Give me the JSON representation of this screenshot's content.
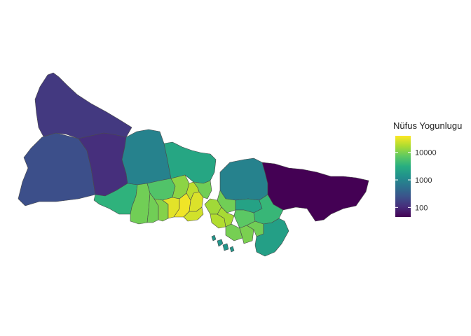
{
  "legend": {
    "title": "Nüfus Yogunlugu",
    "scale": "log10",
    "range": [
      45,
      40000
    ],
    "ticks": [
      {
        "label": "10000",
        "value": 10000
      },
      {
        "label": "1000",
        "value": 1000
      },
      {
        "label": "100",
        "value": 100
      }
    ]
  },
  "palette": [
    "#440154",
    "#472d7b",
    "#3b528b",
    "#2c728e",
    "#21918c",
    "#28ae80",
    "#5ec962",
    "#addc30",
    "#fde725"
  ],
  "regions": [
    {
      "id": "catalca",
      "density": 140
    },
    {
      "id": "silivri",
      "density": 230
    },
    {
      "id": "arnavutkoy",
      "density": 110
    },
    {
      "id": "eyup-north",
      "density": 900
    },
    {
      "id": "sariyer",
      "density": 2500
    },
    {
      "id": "beykoz",
      "density": 900
    },
    {
      "id": "sile",
      "density": 45
    },
    {
      "id": "buyukcekmece",
      "density": 3500
    },
    {
      "id": "esenyurt",
      "density": 9000
    },
    {
      "id": "basaksehir",
      "density": 6000
    },
    {
      "id": "sultangazi",
      "density": 12000
    },
    {
      "id": "avcilar",
      "density": 9000
    },
    {
      "id": "kucukcekmece",
      "density": 11000
    },
    {
      "id": "bagcilar",
      "density": 30000
    },
    {
      "id": "bahcelievler",
      "density": 35000
    },
    {
      "id": "fatih",
      "density": 25000
    },
    {
      "id": "beyoglu",
      "density": 28000
    },
    {
      "id": "sisli",
      "density": 20000
    },
    {
      "id": "besiktas",
      "density": 9000
    },
    {
      "id": "uskudar",
      "density": 15000
    },
    {
      "id": "umraniye",
      "density": 9000
    },
    {
      "id": "kadikoy",
      "density": 18000
    },
    {
      "id": "atasehir",
      "density": 16000
    },
    {
      "id": "maltepe",
      "density": 9500
    },
    {
      "id": "cekmekoy",
      "density": 2200
    },
    {
      "id": "sancaktepe",
      "density": 7000
    },
    {
      "id": "kartal",
      "density": 10000
    },
    {
      "id": "sultanbeyli",
      "density": 9000
    },
    {
      "id": "pendik",
      "density": 4000
    },
    {
      "id": "tuzla",
      "density": 2000
    },
    {
      "id": "adalar",
      "density": 1500
    }
  ]
}
